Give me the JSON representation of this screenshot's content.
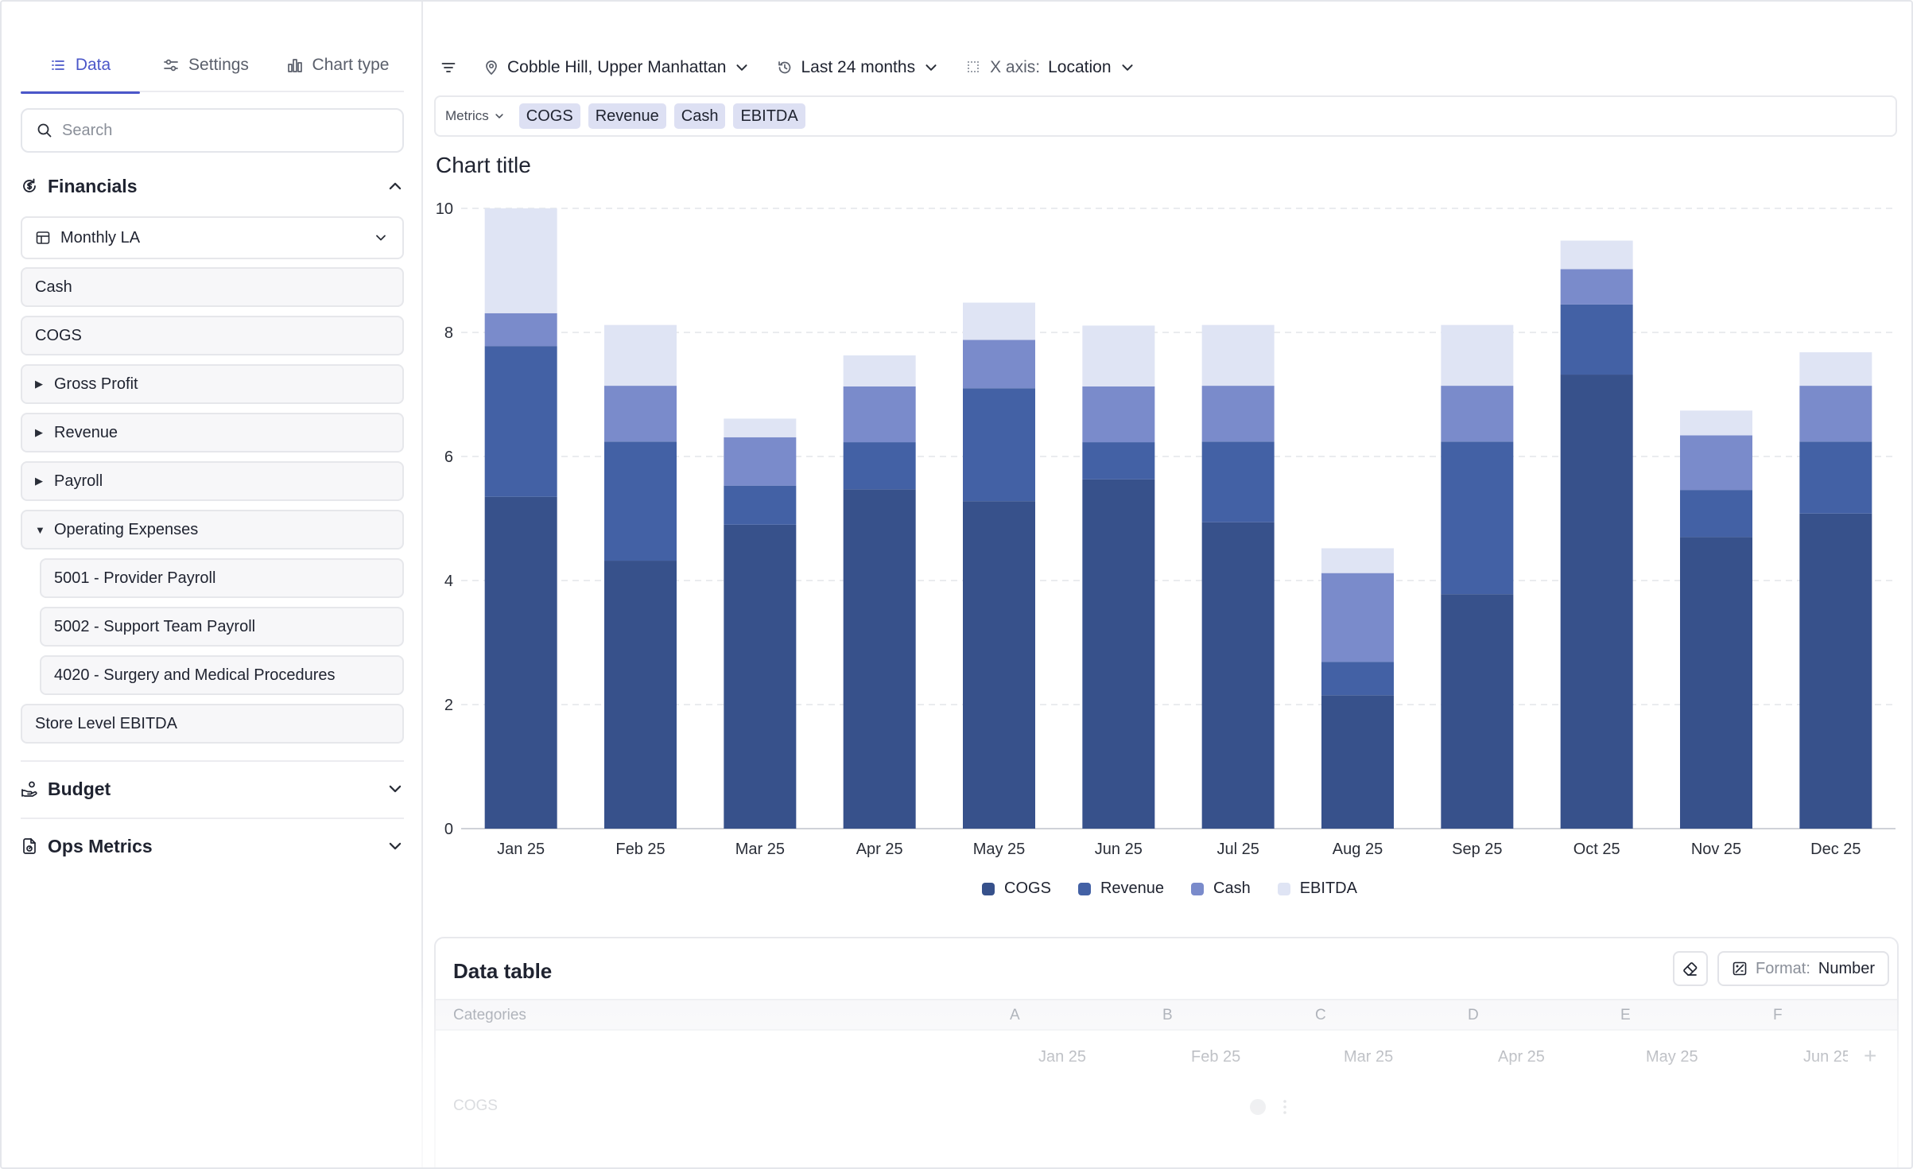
{
  "sidebar": {
    "tabs": [
      {
        "label": "Data",
        "icon": "list-icon"
      },
      {
        "label": "Settings",
        "icon": "sliders-icon"
      },
      {
        "label": "Chart type",
        "icon": "bar-chart-icon"
      }
    ],
    "search_placeholder": "Search",
    "sections": {
      "financials": "Financials",
      "budget": "Budget",
      "ops": "Ops Metrics"
    },
    "dropdown": "Monthly LA",
    "items": {
      "cash": "Cash",
      "cogs": "COGS",
      "gross_profit": "Gross Profit",
      "revenue": "Revenue",
      "payroll": "Payroll",
      "opex": "Operating Expenses",
      "provider_payroll": "5001 - Provider Payroll",
      "support_payroll": "5002 - Support Team Payroll",
      "surgery": "4020 - Surgery and Medical Procedures",
      "store_ebitda": "Store Level EBITDA"
    }
  },
  "toolbar": {
    "location": "Cobble Hill, Upper Manhattan",
    "period": "Last 24 months",
    "xaxis_prefix": "X axis:",
    "xaxis_value": "Location"
  },
  "metrics": {
    "label": "Metrics",
    "chips": [
      "COGS",
      "Revenue",
      "Cash",
      "EBITDA"
    ]
  },
  "chart_data": {
    "type": "bar",
    "stacked": true,
    "title": "Chart title",
    "categories": [
      "Jan 25",
      "Feb 25",
      "Mar 25",
      "Apr 25",
      "May 25",
      "Jun 25",
      "Jul 25",
      "Aug 25",
      "Sep 25",
      "Oct 25",
      "Nov 25",
      "Dec 25"
    ],
    "series": [
      {
        "name": "COGS",
        "color": "#37518b",
        "values": [
          5.35,
          4.32,
          4.9,
          5.47,
          5.28,
          5.63,
          4.94,
          2.15,
          3.78,
          7.32,
          4.7,
          5.08
        ]
      },
      {
        "name": "Revenue",
        "color": "#4361a5",
        "values": [
          2.43,
          1.92,
          0.63,
          0.76,
          1.82,
          0.6,
          1.3,
          0.54,
          2.46,
          1.13,
          0.76,
          1.16
        ]
      },
      {
        "name": "Cash",
        "color": "#7a8bcb",
        "values": [
          0.53,
          0.9,
          0.78,
          0.9,
          0.78,
          0.9,
          0.9,
          1.43,
          0.9,
          0.57,
          0.88,
          0.9
        ]
      },
      {
        "name": "EBITDA",
        "color": "#dfe4f4",
        "values": [
          1.69,
          0.98,
          0.3,
          0.5,
          0.6,
          0.98,
          0.98,
          0.4,
          0.98,
          0.46,
          0.4,
          0.54
        ]
      }
    ],
    "ylim": [
      0,
      10
    ],
    "yticks": [
      0,
      2,
      4,
      6,
      8,
      10
    ],
    "grid": true,
    "legend": "bottom-center"
  },
  "table": {
    "title": "Data table",
    "format_prefix": "Format:",
    "format_value": "Number",
    "categories_label": "Categories",
    "column_letters": [
      "A",
      "B",
      "C",
      "D",
      "E",
      "F"
    ],
    "months": [
      "Jan 25",
      "Feb 25",
      "Mar 25",
      "Apr 25",
      "May 25",
      "Jun 25"
    ],
    "first_row": "COGS",
    "add_symbol": "+"
  }
}
